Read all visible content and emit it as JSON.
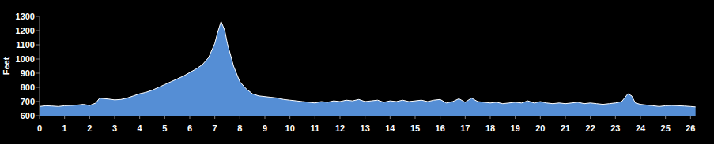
{
  "chart_data": {
    "type": "area",
    "y_label": "Feet",
    "x": [
      0,
      0.25,
      0.5,
      0.75,
      1,
      1.25,
      1.5,
      1.75,
      2,
      2.25,
      2.4,
      2.5,
      2.75,
      3,
      3.25,
      3.5,
      3.75,
      4,
      4.25,
      4.5,
      4.75,
      5,
      5.25,
      5.5,
      5.75,
      6,
      6.25,
      6.5,
      6.75,
      7,
      7.1,
      7.25,
      7.4,
      7.5,
      7.75,
      8,
      8.25,
      8.5,
      8.75,
      9,
      9.25,
      9.5,
      9.75,
      10,
      10.25,
      10.5,
      10.75,
      11,
      11.25,
      11.5,
      11.75,
      12,
      12.25,
      12.5,
      12.75,
      13,
      13.25,
      13.5,
      13.75,
      14,
      14.25,
      14.5,
      14.75,
      15,
      15.25,
      15.5,
      15.75,
      16,
      16.25,
      16.5,
      16.75,
      17,
      17.25,
      17.5,
      17.75,
      18,
      18.25,
      18.5,
      18.75,
      19,
      19.25,
      19.5,
      19.75,
      20,
      20.25,
      20.5,
      20.75,
      21,
      21.25,
      21.5,
      21.75,
      22,
      22.25,
      22.5,
      22.75,
      23,
      23.25,
      23.5,
      23.65,
      23.8,
      24,
      24.25,
      24.5,
      24.75,
      25,
      25.25,
      25.5,
      25.75,
      26,
      26.2
    ],
    "values": [
      665,
      670,
      668,
      665,
      670,
      672,
      675,
      680,
      672,
      690,
      725,
      722,
      718,
      712,
      715,
      725,
      740,
      755,
      765,
      780,
      800,
      820,
      840,
      860,
      880,
      905,
      930,
      960,
      1010,
      1110,
      1180,
      1265,
      1200,
      1110,
      950,
      840,
      790,
      755,
      740,
      735,
      730,
      725,
      715,
      710,
      705,
      700,
      695,
      690,
      700,
      695,
      705,
      700,
      710,
      705,
      715,
      700,
      705,
      710,
      695,
      705,
      700,
      710,
      700,
      705,
      710,
      700,
      710,
      715,
      690,
      700,
      720,
      695,
      725,
      700,
      695,
      690,
      695,
      685,
      690,
      695,
      690,
      705,
      690,
      700,
      690,
      685,
      690,
      685,
      690,
      695,
      685,
      690,
      685,
      680,
      685,
      690,
      700,
      755,
      740,
      690,
      680,
      675,
      670,
      665,
      670,
      672,
      670,
      668,
      665,
      662
    ],
    "color": "#558ed5",
    "xlim": [
      0,
      26.4
    ],
    "ylim": [
      600,
      1300
    ],
    "xticks": [
      0,
      1,
      2,
      3,
      4,
      5,
      6,
      7,
      8,
      9,
      10,
      11,
      12,
      13,
      14,
      15,
      16,
      17,
      18,
      19,
      20,
      21,
      22,
      23,
      24,
      25,
      26
    ],
    "yticks": [
      600,
      700,
      800,
      900,
      1000,
      1100,
      1200,
      1300
    ],
    "grid": false
  }
}
